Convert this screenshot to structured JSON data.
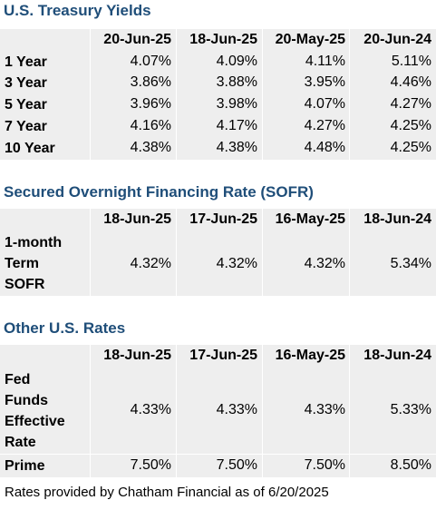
{
  "treasury": {
    "title": "U.S. Treasury Yields",
    "columns": [
      "20-Jun-25",
      "18-Jun-25",
      "20-May-25",
      "20-Jun-24"
    ],
    "rows": [
      {
        "label": "1 Year",
        "values": [
          "4.07%",
          "4.09%",
          "4.11%",
          "5.11%"
        ]
      },
      {
        "label": "3 Year",
        "values": [
          "3.86%",
          "3.88%",
          "3.95%",
          "4.46%"
        ]
      },
      {
        "label": "5 Year",
        "values": [
          "3.96%",
          "3.98%",
          "4.07%",
          "4.27%"
        ]
      },
      {
        "label": "7 Year",
        "values": [
          "4.16%",
          "4.17%",
          "4.27%",
          "4.25%"
        ]
      },
      {
        "label": "10 Year",
        "values": [
          "4.38%",
          "4.38%",
          "4.48%",
          "4.25%"
        ]
      }
    ]
  },
  "sofr": {
    "title": "Secured Overnight Financing Rate (SOFR)",
    "columns": [
      "18-Jun-25",
      "17-Jun-25",
      "16-May-25",
      "18-Jun-24"
    ],
    "rows": [
      {
        "label_lines": [
          "1-month",
          "Term",
          "SOFR"
        ],
        "values": [
          "4.32%",
          "4.32%",
          "4.32%",
          "5.34%"
        ]
      }
    ]
  },
  "other": {
    "title": "Other U.S. Rates",
    "columns": [
      "18-Jun-25",
      "17-Jun-25",
      "16-May-25",
      "18-Jun-24"
    ],
    "rows": [
      {
        "label_lines": [
          "Fed",
          "Funds",
          "Effective",
          "Rate"
        ],
        "values": [
          "4.33%",
          "4.33%",
          "4.33%",
          "5.33%"
        ]
      },
      {
        "label_lines": [
          "Prime"
        ],
        "values": [
          "7.50%",
          "7.50%",
          "7.50%",
          "8.50%"
        ]
      }
    ]
  },
  "footer": "Rates provided by Chatham Financial as of 6/20/2025"
}
